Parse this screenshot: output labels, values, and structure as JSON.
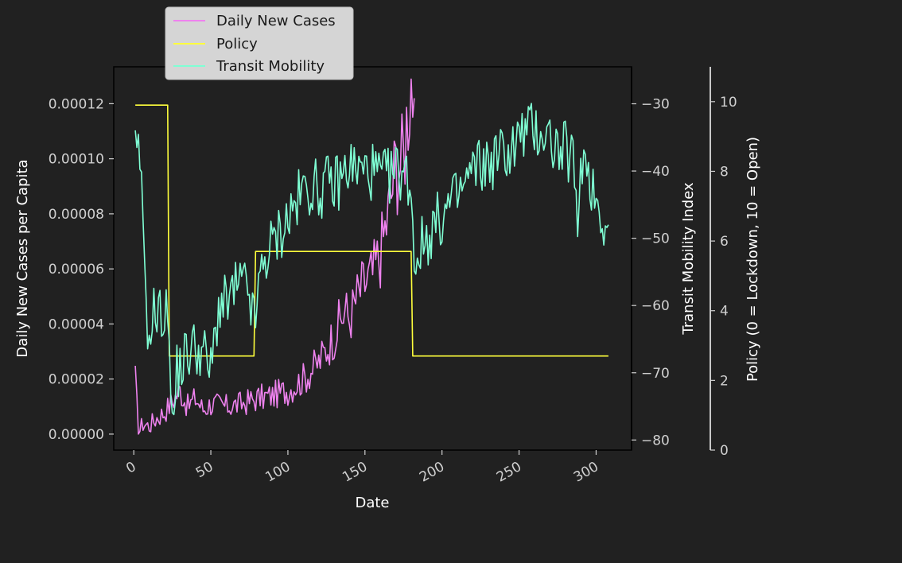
{
  "chart_data": {
    "type": "line",
    "title": "",
    "xlabel": "Date",
    "xlim": [
      -13,
      323
    ],
    "x_ticks": [
      "0",
      "50",
      "100",
      "150",
      "200",
      "250",
      "300"
    ],
    "y_left": {
      "label": "Daily New Cases per Capita",
      "ylim": [
        -5.8e-06,
        0.0001334
      ],
      "ticks": [
        "0.00000",
        "0.00002",
        "0.00004",
        "0.00006",
        "0.00008",
        "0.00010",
        "0.00012"
      ]
    },
    "y_right": {
      "label": "Transit Mobility Index",
      "ylim": [
        -81.5,
        -24.5
      ],
      "ticks": [
        "−30",
        "−40",
        "−50",
        "−60",
        "−70",
        "−80"
      ]
    },
    "y_right2": {
      "label": "Policy (0 = Lockdown, 10 = Open)",
      "ylim": [
        0,
        11
      ],
      "ticks": [
        "0",
        "2",
        "4",
        "6",
        "8",
        "10"
      ]
    },
    "grid": false,
    "legend": {
      "placement": "top-left, above plot"
    },
    "series": [
      {
        "name": "Daily New Cases",
        "axis": "left",
        "color": "#ee82ee",
        "keypoints": [
          [
            1,
            2e-05
          ],
          [
            3,
            5e-07
          ],
          [
            6,
            4e-06
          ],
          [
            10,
            3e-06
          ],
          [
            15,
            6e-06
          ],
          [
            20,
            8e-06
          ],
          [
            25,
            1.2e-05
          ],
          [
            30,
            1.6e-05
          ],
          [
            35,
            1e-05
          ],
          [
            40,
            1.3e-05
          ],
          [
            45,
            9e-06
          ],
          [
            50,
            1.1e-05
          ],
          [
            60,
            1e-05
          ],
          [
            70,
            1.1e-05
          ],
          [
            80,
            1.3e-05
          ],
          [
            90,
            1.4e-05
          ],
          [
            100,
            1.6e-05
          ],
          [
            110,
            2e-05
          ],
          [
            120,
            2.6e-05
          ],
          [
            130,
            3.6e-05
          ],
          [
            137,
            4.5e-05
          ],
          [
            140,
            4.2e-05
          ],
          [
            145,
            5e-05
          ],
          [
            150,
            5.5e-05
          ],
          [
            155,
            5.8e-05
          ],
          [
            160,
            6.6e-05
          ],
          [
            165,
            8e-05
          ],
          [
            170,
            9.8e-05
          ],
          [
            175,
            0.0001
          ],
          [
            178,
            0.00012
          ],
          [
            180,
            0.00013
          ],
          [
            182,
            0.000122
          ]
        ]
      },
      {
        "name": "Policy",
        "axis": "right2",
        "color": "#ffff3c",
        "steps": [
          [
            1,
            9.9
          ],
          [
            22,
            9.9
          ],
          [
            23,
            2.7
          ],
          [
            78,
            2.7
          ],
          [
            79,
            5.7
          ],
          [
            180,
            5.7
          ],
          [
            181,
            2.7
          ],
          [
            308,
            2.7
          ]
        ]
      },
      {
        "name": "Transit Mobility",
        "axis": "right",
        "color": "#7fffd4",
        "keypoints": [
          [
            1,
            -37
          ],
          [
            2,
            -39
          ],
          [
            4,
            -38
          ],
          [
            6,
            -50
          ],
          [
            8,
            -57
          ],
          [
            10,
            -68
          ],
          [
            12,
            -60
          ],
          [
            15,
            -62
          ],
          [
            18,
            -61
          ],
          [
            20,
            -62
          ],
          [
            23,
            -61
          ],
          [
            24,
            -71
          ],
          [
            25,
            -79
          ],
          [
            28,
            -70
          ],
          [
            30,
            -69
          ],
          [
            35,
            -67
          ],
          [
            40,
            -66
          ],
          [
            45,
            -67
          ],
          [
            50,
            -70
          ],
          [
            55,
            -60
          ],
          [
            60,
            -60
          ],
          [
            65,
            -58
          ],
          [
            70,
            -57
          ],
          [
            75,
            -58
          ],
          [
            78,
            -63
          ],
          [
            80,
            -60
          ],
          [
            82,
            -56
          ],
          [
            85,
            -53
          ],
          [
            90,
            -51
          ],
          [
            95,
            -49
          ],
          [
            100,
            -47
          ],
          [
            105,
            -45
          ],
          [
            110,
            -43
          ],
          [
            115,
            -42
          ],
          [
            120,
            -43
          ],
          [
            125,
            -42
          ],
          [
            130,
            -42
          ],
          [
            135,
            -41
          ],
          [
            140,
            -39
          ],
          [
            145,
            -40
          ],
          [
            150,
            -40
          ],
          [
            155,
            -40
          ],
          [
            160,
            -41
          ],
          [
            165,
            -41
          ],
          [
            170,
            -40
          ],
          [
            175,
            -40
          ],
          [
            180,
            -42
          ],
          [
            182,
            -54
          ],
          [
            184,
            -52
          ],
          [
            190,
            -50
          ],
          [
            195,
            -48
          ],
          [
            200,
            -47
          ],
          [
            205,
            -45
          ],
          [
            210,
            -44
          ],
          [
            215,
            -42
          ],
          [
            220,
            -40
          ],
          [
            225,
            -39
          ],
          [
            230,
            -39
          ],
          [
            235,
            -38
          ],
          [
            240,
            -37
          ],
          [
            245,
            -37
          ],
          [
            250,
            -35
          ],
          [
            255,
            -34
          ],
          [
            260,
            -34
          ],
          [
            265,
            -34
          ],
          [
            270,
            -35
          ],
          [
            275,
            -37
          ],
          [
            280,
            -37
          ],
          [
            285,
            -38
          ],
          [
            288,
            -51
          ],
          [
            290,
            -37
          ],
          [
            295,
            -40
          ],
          [
            300,
            -44
          ],
          [
            303,
            -46
          ],
          [
            305,
            -47
          ],
          [
            308,
            -48
          ]
        ]
      }
    ]
  }
}
